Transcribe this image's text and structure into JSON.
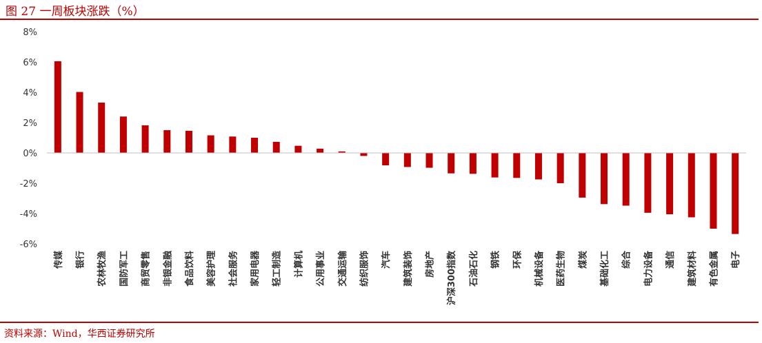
{
  "header": {
    "title": "图 27 一周板块涨跌（%）"
  },
  "footer": {
    "source": "资料来源：Wind，华西证券研究所"
  },
  "colors": {
    "bar": "#c00000",
    "accent": "#c00000",
    "axis": "#bfbfbf",
    "text": "#333333"
  },
  "chart_data": {
    "type": "bar",
    "title": "图 27 一周板块涨跌（%）",
    "xlabel": "",
    "ylabel": "",
    "ylim": [
      -6,
      8
    ],
    "yticks": [
      8,
      6,
      4,
      2,
      0,
      -2,
      -4,
      -6
    ],
    "ytick_labels": [
      "8%",
      "6%",
      "4%",
      "2%",
      "0%",
      "-2%",
      "-4%",
      "-6%"
    ],
    "grid": false,
    "legend": "none",
    "categories": [
      "传媒",
      "银行",
      "农林牧渔",
      "国防军工",
      "商贸零售",
      "非银金融",
      "食品饮料",
      "美容护理",
      "社会服务",
      "家用电器",
      "轻工制造",
      "计算机",
      "公用事业",
      "交通运输",
      "纺织服饰",
      "汽车",
      "建筑装饰",
      "房地产",
      "沪深300指数",
      "石油石化",
      "钢铁",
      "环保",
      "机械设备",
      "医药生物",
      "煤炭",
      "基础化工",
      "综合",
      "电力设备",
      "通信",
      "建筑材料",
      "有色金属",
      "电子"
    ],
    "values": [
      6.05,
      4.02,
      3.32,
      2.4,
      1.82,
      1.5,
      1.46,
      1.16,
      1.08,
      1.0,
      0.73,
      0.47,
      0.28,
      0.1,
      -0.2,
      -0.82,
      -0.93,
      -0.98,
      -1.35,
      -1.38,
      -1.62,
      -1.65,
      -1.75,
      -2.0,
      -2.95,
      -3.38,
      -3.48,
      -3.95,
      -4.05,
      -4.25,
      -5.0,
      -5.35
    ]
  }
}
